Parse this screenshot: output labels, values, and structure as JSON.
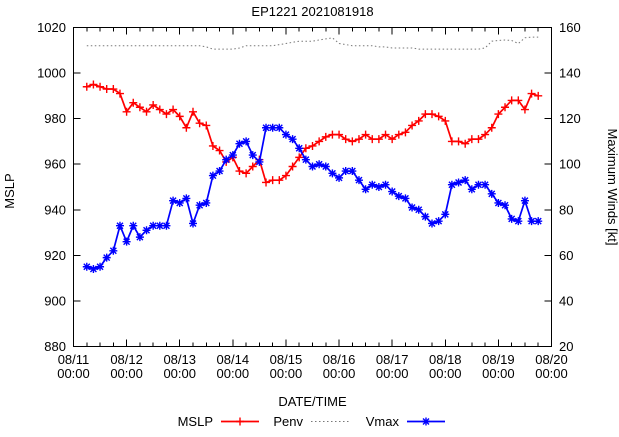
{
  "chart_data": {
    "type": "line",
    "title": "EP1221 2021081918",
    "grid": false,
    "legend_position": "bottom-center",
    "x_axis": {
      "label": "DATE/TIME",
      "span_hours": 216,
      "major_tick_hours": 24,
      "minor_tick_hours": 6,
      "tick_labels": [
        {
          "date": "08/11",
          "time": "00:00"
        },
        {
          "date": "08/12",
          "time": "00:00"
        },
        {
          "date": "08/13",
          "time": "00:00"
        },
        {
          "date": "08/14",
          "time": "00:00"
        },
        {
          "date": "08/15",
          "time": "00:00"
        },
        {
          "date": "08/16",
          "time": "00:00"
        },
        {
          "date": "08/17",
          "time": "00:00"
        },
        {
          "date": "08/18",
          "time": "00:00"
        },
        {
          "date": "08/19",
          "time": "00:00"
        },
        {
          "date": "08/20",
          "time": "00:00"
        }
      ]
    },
    "y_left": {
      "label": "MSLP",
      "min": 880,
      "max": 1020,
      "tick_step": 20,
      "ticks": [
        880,
        900,
        920,
        940,
        960,
        980,
        1000,
        1020
      ]
    },
    "y_right": {
      "label": "Maximum Winds [kt]",
      "min": 20,
      "max": 160,
      "tick_step": 20,
      "ticks": [
        20,
        40,
        60,
        80,
        100,
        120,
        140,
        160
      ]
    },
    "x_hours": [
      6,
      9,
      12,
      15,
      18,
      21,
      24,
      27,
      30,
      33,
      36,
      39,
      42,
      45,
      48,
      51,
      54,
      57,
      60,
      63,
      66,
      69,
      72,
      75,
      78,
      81,
      84,
      87,
      90,
      93,
      96,
      99,
      102,
      105,
      108,
      111,
      114,
      117,
      120,
      123,
      126,
      129,
      132,
      135,
      138,
      141,
      144,
      147,
      150,
      153,
      156,
      159,
      162,
      165,
      168,
      171,
      174,
      177,
      180,
      183,
      186,
      189,
      192,
      195,
      198,
      201,
      204,
      207,
      210
    ],
    "series": [
      {
        "name": "MSLP",
        "axis": "left",
        "color": "#ff0000",
        "marker": "plus",
        "style": "solid",
        "values": [
          994,
          995,
          994,
          993,
          993,
          991,
          983,
          987,
          985,
          983,
          986,
          984,
          982,
          984,
          981,
          976,
          983,
          978,
          977,
          968,
          966,
          961,
          963,
          957,
          956,
          959,
          962,
          952,
          953,
          953,
          955,
          959,
          963,
          967,
          968,
          970,
          972,
          973,
          973,
          971,
          970,
          971,
          973,
          971,
          971,
          973,
          971,
          973,
          974,
          977,
          979,
          982,
          982,
          981,
          979,
          970,
          970,
          969,
          971,
          971,
          973,
          976,
          982,
          985,
          988,
          988,
          984,
          991,
          990
        ]
      },
      {
        "name": "Penv",
        "axis": "left",
        "color": "#787878",
        "marker": "none",
        "style": "dotted",
        "values": [
          1012,
          1012,
          1012,
          1012,
          1012,
          1012,
          1012,
          1012,
          1012,
          1012,
          1012,
          1012,
          1012,
          1012,
          1012,
          1012,
          1012,
          1012,
          1011.5,
          1010.5,
          1010.5,
          1010.5,
          1010.5,
          1011,
          1012,
          1012,
          1012,
          1012,
          1012,
          1012.5,
          1013,
          1013.5,
          1014,
          1014,
          1014,
          1014.5,
          1015,
          1015.5,
          1013,
          1012.5,
          1012,
          1012,
          1012,
          1012,
          1011.5,
          1011.5,
          1011,
          1011,
          1011,
          1011,
          1010.5,
          1010.5,
          1010.5,
          1010.5,
          1010.5,
          1010.5,
          1010.5,
          1010.5,
          1010.5,
          1010.5,
          1011,
          1014,
          1014.3,
          1014.5,
          1014.3,
          1013,
          1015.5,
          1015.8,
          1015.8
        ]
      },
      {
        "name": "Vmax",
        "axis": "right",
        "color": "#0000ff",
        "marker": "asterisk",
        "style": "solid",
        "values": [
          55,
          54,
          55,
          59,
          62,
          73,
          66,
          73,
          68,
          71,
          73,
          73,
          73,
          84,
          83,
          85,
          74,
          82,
          83,
          95,
          97,
          102,
          104,
          109,
          110,
          104,
          101,
          116,
          116,
          116,
          113,
          111,
          107,
          102,
          99,
          100,
          99,
          96,
          94,
          97,
          97,
          93,
          89,
          91,
          90,
          91,
          88,
          86,
          85,
          81,
          80,
          77,
          74,
          75,
          78,
          91,
          92,
          93,
          89,
          91,
          91,
          87,
          83,
          82,
          76,
          75,
          84,
          75,
          75
        ]
      }
    ]
  }
}
